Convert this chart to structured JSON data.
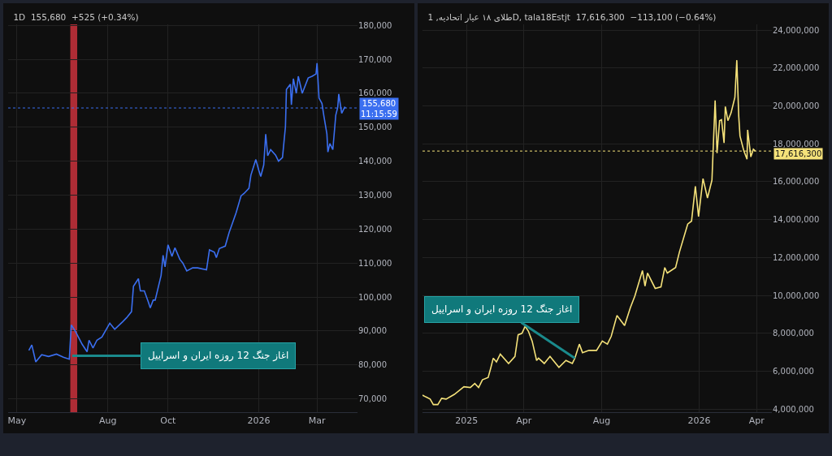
{
  "chart_data": [
    {
      "type": "line",
      "title": "1D  155,680  +525 (+0.34%)",
      "x": [
        "2025-05-13",
        "2025-05-16",
        "2025-05-20",
        "2025-05-26",
        "2025-06-02",
        "2025-06-10",
        "2025-06-17",
        "2025-06-23",
        "2025-06-25",
        "2025-06-29",
        "2025-07-06",
        "2025-07-11",
        "2025-07-13",
        "2025-07-17",
        "2025-07-21",
        "2025-07-26",
        "2025-08-03",
        "2025-08-08",
        "2025-08-16",
        "2025-08-20",
        "2025-08-25",
        "2025-08-27",
        "2025-09-01",
        "2025-09-03",
        "2025-09-07",
        "2025-09-11",
        "2025-09-13",
        "2025-09-16",
        "2025-09-18",
        "2025-09-24",
        "2025-09-26",
        "2025-09-28",
        "2025-10-01",
        "2025-10-05",
        "2025-10-08",
        "2025-10-13",
        "2025-10-16",
        "2025-10-20",
        "2025-10-26",
        "2025-10-31",
        "2025-11-09",
        "2025-11-12",
        "2025-11-17",
        "2025-11-19",
        "2025-11-22",
        "2025-11-28",
        "2025-12-02",
        "2025-12-04",
        "2025-12-09",
        "2025-12-14",
        "2025-12-17",
        "2025-12-22",
        "2025-12-24",
        "2025-12-29",
        "2026-01-01",
        "2026-01-03",
        "2026-01-06",
        "2026-01-08",
        "2026-01-10",
        "2026-01-13",
        "2026-01-18",
        "2026-01-21",
        "2026-01-25",
        "2026-01-28",
        "2026-01-29",
        "2026-02-02",
        "2026-02-03",
        "2026-02-05",
        "2026-02-08",
        "2026-02-10",
        "2026-02-14",
        "2026-02-20",
        "2026-02-24",
        "2026-02-28",
        "2026-03-01",
        "2026-03-03",
        "2026-03-06",
        "2026-03-08",
        "2026-03-11",
        "2026-03-12",
        "2026-03-14",
        "2026-03-17",
        "2026-03-20",
        "2026-03-22",
        "2026-03-23",
        "2026-03-26",
        "2026-03-29",
        "2026-03-30"
      ],
      "series": [
        {
          "color": "#3b6ff0",
          "values": [
            84300,
            85900,
            80900,
            83000,
            82500,
            83200,
            82300,
            81700,
            91800,
            90000,
            86100,
            83900,
            87300,
            85000,
            87300,
            88200,
            92300,
            90500,
            92700,
            93900,
            95700,
            103200,
            105400,
            101800,
            101800,
            98600,
            96800,
            99100,
            99100,
            106400,
            112300,
            108900,
            115400,
            112000,
            114500,
            111100,
            110000,
            107700,
            108600,
            108600,
            108000,
            113900,
            113200,
            111600,
            114300,
            115000,
            119100,
            120700,
            124800,
            129800,
            130500,
            132000,
            135900,
            140500,
            137300,
            135500,
            138900,
            148000,
            141600,
            143400,
            141800,
            140000,
            141100,
            150200,
            161100,
            162700,
            156600,
            164300,
            160000,
            165000,
            160000,
            164500,
            165000,
            165700,
            168900,
            158600,
            157000,
            153200,
            148000,
            142700,
            145200,
            143400,
            153600,
            155900,
            159800,
            154100,
            155900,
            155680
          ]
        }
      ],
      "xlim": [
        "2025-04-22",
        "2026-04-11"
      ],
      "xticks": [
        {
          "value": "2025-05-01",
          "label": "May"
        },
        {
          "value": "2025-08-01",
          "label": "Aug"
        },
        {
          "value": "2025-10-01",
          "label": "Oct"
        },
        {
          "value": "2026-01-01",
          "label": "2026"
        },
        {
          "value": "2026-03-01",
          "label": "Mar"
        }
      ],
      "ylim": [
        66100,
        180300
      ],
      "yticks": [
        {
          "value": 70000,
          "label": "70,000"
        },
        {
          "value": 80000,
          "label": "80,000"
        },
        {
          "value": 90000,
          "label": "90,000"
        },
        {
          "value": 100000,
          "label": "100,000"
        },
        {
          "value": 110000,
          "label": "110,000"
        },
        {
          "value": 120000,
          "label": "120,000"
        },
        {
          "value": 130000,
          "label": "130,000"
        },
        {
          "value": 140000,
          "label": "140,000"
        },
        {
          "value": 150000,
          "label": "150,000"
        },
        {
          "value": 160000,
          "label": "160,000"
        },
        {
          "value": 170000,
          "label": "170,000"
        },
        {
          "value": 180000,
          "label": "180,000"
        }
      ],
      "grid": true,
      "ref_lines": [
        {
          "axis": "y",
          "value": 155680,
          "label": "155,680",
          "color": "#3b6ff0",
          "line_style": "dotted"
        }
      ],
      "bands": [
        {
          "axis": "x",
          "from": "2025-06-24",
          "to": "2025-07-01",
          "color": "#c0303a"
        }
      ],
      "annotations": [
        "11:15:59",
        {
          "text": "اغاز جنگ 12 روزه ایران و اسراییل",
          "x": "2025-06-26",
          "y": 82700
        }
      ]
    },
    {
      "type": "line",
      "title": "طلای ۱۸ عیار اتحادیه, 1D, tala18Estjt  17,616,300  −113,100 (−0.64%)",
      "x": [
        "2024-10-24",
        "2024-10-29",
        "2024-11-05",
        "2024-11-10",
        "2024-11-17",
        "2024-11-23",
        "2024-11-30",
        "2024-12-13",
        "2024-12-28",
        "2025-01-07",
        "2025-01-14",
        "2025-01-20",
        "2025-01-26",
        "2025-02-04",
        "2025-02-08",
        "2025-02-12",
        "2025-02-17",
        "2025-02-23",
        "2025-03-08",
        "2025-03-18",
        "2025-03-23",
        "2025-03-29",
        "2025-04-03",
        "2025-04-08",
        "2025-04-14",
        "2025-04-21",
        "2025-04-24",
        "2025-05-03",
        "2025-05-12",
        "2025-05-26",
        "2025-06-06",
        "2025-06-16",
        "2025-06-20",
        "2025-06-27",
        "2025-07-02",
        "2025-07-12",
        "2025-07-24",
        "2025-08-02",
        "2025-08-10",
        "2025-08-16",
        "2025-08-25",
        "2025-09-06",
        "2025-09-15",
        "2025-09-22",
        "2025-10-04",
        "2025-10-08",
        "2025-10-12",
        "2025-10-24",
        "2025-11-02",
        "2025-11-08",
        "2025-11-12",
        "2025-11-25",
        "2025-12-01",
        "2025-12-14",
        "2025-12-20",
        "2025-12-26",
        "2025-12-31",
        "2026-01-07",
        "2026-01-14",
        "2026-01-21",
        "2026-01-26",
        "2026-01-29",
        "2026-02-02",
        "2026-02-05",
        "2026-02-09",
        "2026-02-11",
        "2026-02-15",
        "2026-02-20",
        "2026-02-26",
        "2026-03-01",
        "2026-03-04",
        "2026-03-06",
        "2026-03-12",
        "2026-03-17",
        "2026-03-18",
        "2026-03-23",
        "2026-03-27",
        "2026-03-30"
      ],
      "series": [
        {
          "color": "#f5e27a",
          "values": [
            4740000,
            4650000,
            4530000,
            4240000,
            4240000,
            4570000,
            4530000,
            4780000,
            5180000,
            5140000,
            5350000,
            5140000,
            5550000,
            5670000,
            6160000,
            6690000,
            6490000,
            6900000,
            6410000,
            6780000,
            7920000,
            8000000,
            8370000,
            8120000,
            7590000,
            6570000,
            6690000,
            6410000,
            6780000,
            6200000,
            6570000,
            6410000,
            6690000,
            7430000,
            6980000,
            7100000,
            7100000,
            7590000,
            7430000,
            7840000,
            8940000,
            8410000,
            9350000,
            9960000,
            11310000,
            10490000,
            11180000,
            10370000,
            10450000,
            11470000,
            11180000,
            11470000,
            12290000,
            13760000,
            13920000,
            15760000,
            14160000,
            16160000,
            15140000,
            16080000,
            20290000,
            17510000,
            19220000,
            19270000,
            18040000,
            19960000,
            19220000,
            19630000,
            20450000,
            22410000,
            19470000,
            18410000,
            17630000,
            17180000,
            18730000,
            17310000,
            17710000,
            17616300
          ]
        }
      ],
      "xlim": [
        "2024-10-24",
        "2026-04-25"
      ],
      "xticks": [
        {
          "value": "2025-01-01",
          "label": "2025"
        },
        {
          "value": "2025-04-01",
          "label": "Apr"
        },
        {
          "value": "2025-08-01",
          "label": "Aug"
        },
        {
          "value": "2026-01-01",
          "label": "2026"
        },
        {
          "value": "2026-04-01",
          "label": "Apr"
        }
      ],
      "ylim": [
        3840000,
        24300000
      ],
      "yticks": [
        {
          "value": 4000000,
          "label": "4,000,000"
        },
        {
          "value": 6000000,
          "label": "6,000,000"
        },
        {
          "value": 8000000,
          "label": "8,000,000"
        },
        {
          "value": 10000000,
          "label": "10,000,000"
        },
        {
          "value": 12000000,
          "label": "12,000,000"
        },
        {
          "value": 14000000,
          "label": "14,000,000"
        },
        {
          "value": 16000000,
          "label": "16,000,000"
        },
        {
          "value": 18000000,
          "label": "18,000,000"
        },
        {
          "value": 20000000,
          "label": "20,000,000"
        },
        {
          "value": 22000000,
          "label": "22,000,000"
        },
        {
          "value": 24000000,
          "label": "24,000,000"
        }
      ],
      "grid": true,
      "ref_lines": [
        {
          "axis": "y",
          "value": 17616300,
          "label": "17,616,300",
          "color": "#f5e27a",
          "line_style": "dotted"
        }
      ],
      "annotations": [
        {
          "text": "اغاز جنگ 12 روزه ایران و اسراییل",
          "x": "2025-06-20",
          "y": 6690000
        }
      ]
    }
  ]
}
